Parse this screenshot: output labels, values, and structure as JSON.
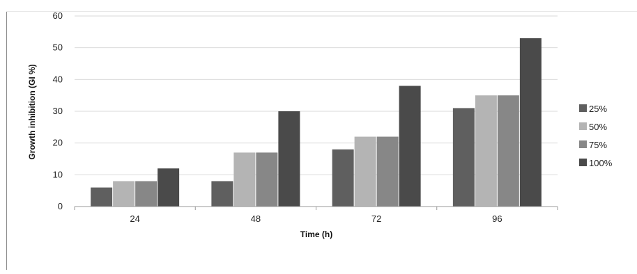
{
  "chart_data": {
    "type": "bar",
    "title": "",
    "xlabel": "Time (h)",
    "ylabel": "Growth inhibition (GI %)",
    "categories": [
      "24",
      "48",
      "72",
      "96"
    ],
    "ylim": [
      0,
      60
    ],
    "yticks": [
      0,
      10,
      20,
      30,
      40,
      50,
      60
    ],
    "grid": true,
    "legend_position": "right",
    "series": [
      {
        "name": "25%",
        "color": "#5f5f5f",
        "values": [
          6,
          8,
          18,
          31
        ]
      },
      {
        "name": "50%",
        "color": "#b4b4b4",
        "values": [
          8,
          17,
          22,
          35
        ]
      },
      {
        "name": "75%",
        "color": "#878787",
        "values": [
          8,
          17,
          22,
          35
        ]
      },
      {
        "name": "100%",
        "color": "#4a4a4a",
        "values": [
          12,
          30,
          38,
          53
        ]
      }
    ]
  }
}
